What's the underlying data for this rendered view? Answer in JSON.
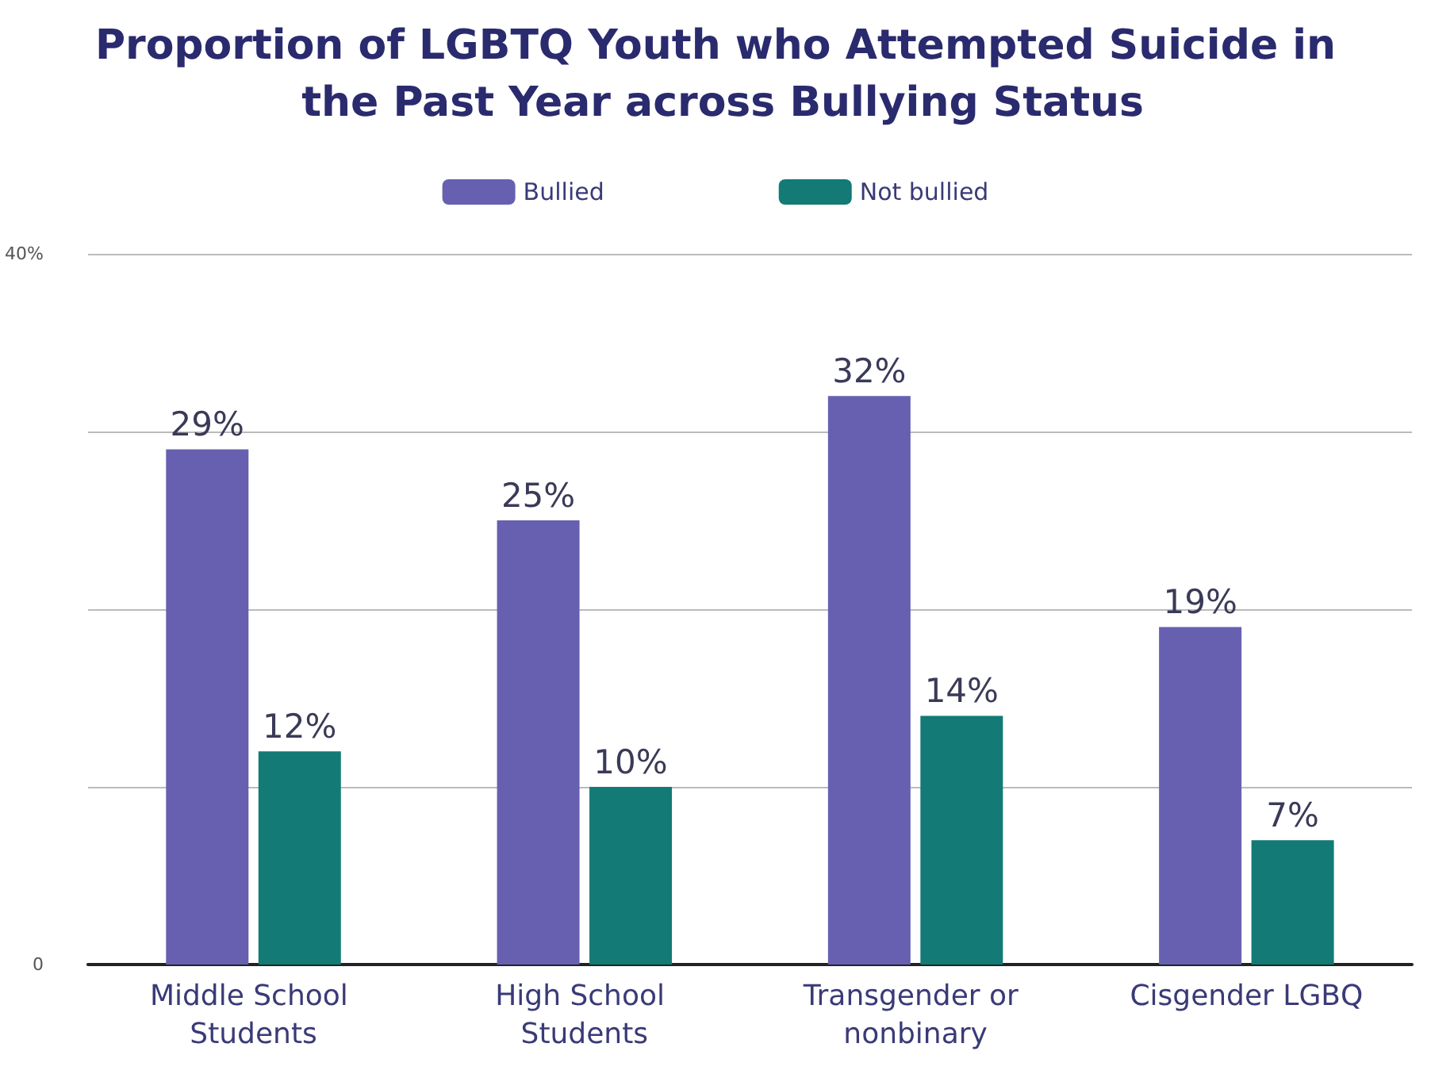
{
  "chart_data": {
    "type": "bar",
    "title": "Proportion of LGBTQ Youth who Attempted Suicide in the Past Year across Bullying Status",
    "categories": [
      "Middle School Students",
      "High School Students",
      "Transgender or nonbinary",
      "Cisgender LGBQ"
    ],
    "series": [
      {
        "name": "Bullied",
        "color": "#6760b0",
        "values": [
          29,
          25,
          32,
          19
        ],
        "value_labels": [
          "29%",
          "25%",
          "32%",
          "19%"
        ]
      },
      {
        "name": "Not bullied",
        "color": "#137a76",
        "values": [
          12,
          10,
          14,
          7
        ],
        "value_labels": [
          "12%",
          "10%",
          "14%",
          "7%"
        ]
      }
    ],
    "ylim": [
      0,
      40
    ],
    "yticks": [
      0,
      {
        "value": 10,
        "label": null
      },
      {
        "value": 20,
        "label": null
      },
      {
        "value": 30,
        "label": null
      },
      {
        "value": 40,
        "label": "40%"
      }
    ],
    "grid": "y",
    "legend": "top"
  }
}
